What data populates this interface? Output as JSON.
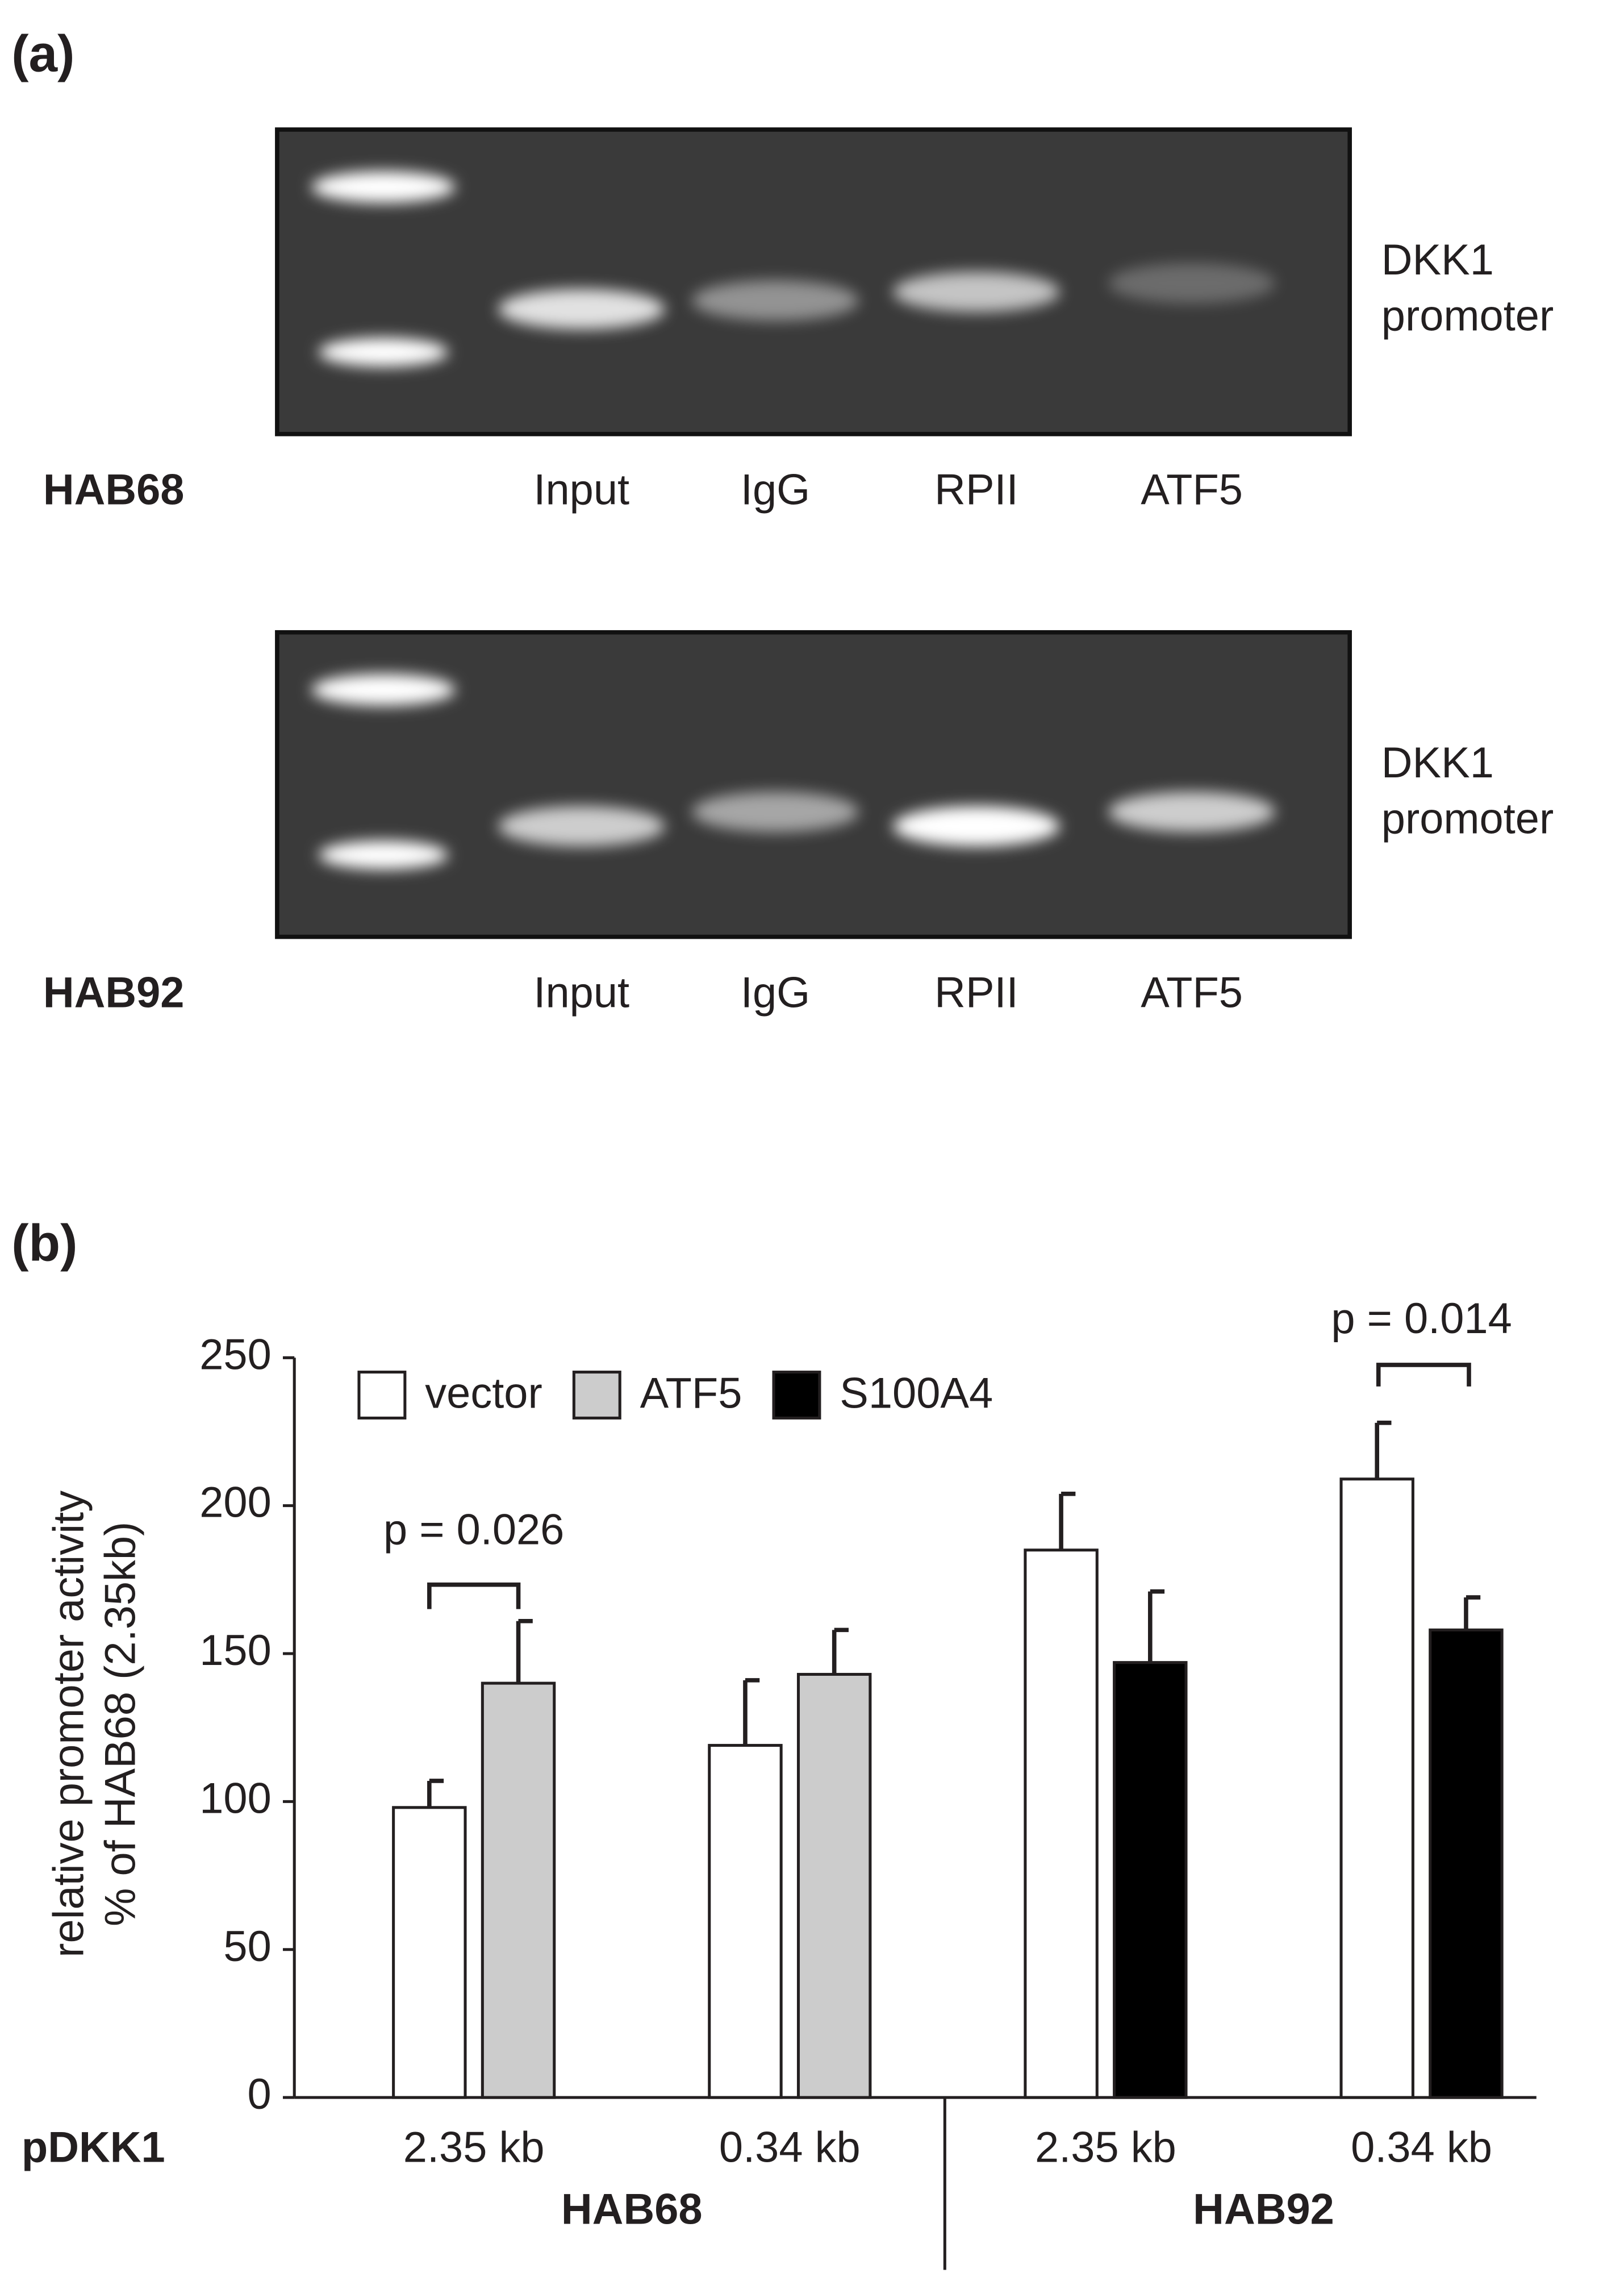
{
  "panel_a": {
    "label": "(a)",
    "gels": [
      {
        "cell_line": "HAB68",
        "lanes": [
          "Input",
          "IgG",
          "RPII",
          "ATF5"
        ],
        "target": [
          "DKK1",
          "promoter"
        ]
      },
      {
        "cell_line": "HAB92",
        "lanes": [
          "Input",
          "IgG",
          "RPII",
          "ATF5"
        ],
        "target": [
          "DKK1",
          "promoter"
        ]
      }
    ]
  },
  "panel_b": {
    "label": "(b)"
  },
  "chart_data": {
    "type": "bar",
    "y_label": [
      "relative promoter activity",
      "% of HAB68 (2.35kb)"
    ],
    "x_prefix": "pDKK1",
    "categories": [
      "2.35 kb",
      "0.34 kb",
      "2.35 kb",
      "0.34 kb"
    ],
    "groups": [
      "HAB68",
      "HAB92"
    ],
    "series": [
      {
        "name": "vector",
        "color": "#ffffff",
        "values": [
          98,
          119,
          185,
          209
        ],
        "errors": [
          9,
          22,
          19,
          19
        ]
      },
      {
        "name": "ATF5",
        "color": "#cccccc",
        "values": [
          140,
          143,
          null,
          null
        ],
        "errors": [
          21,
          15,
          null,
          null
        ]
      },
      {
        "name": "S100A4",
        "color": "#000000",
        "values": [
          null,
          null,
          147,
          158
        ],
        "errors": [
          null,
          null,
          24,
          11
        ]
      }
    ],
    "annotations": [
      "p = 0.026",
      "p = 0.014"
    ],
    "ylim": [
      0,
      250
    ],
    "yticks": [
      0,
      50,
      100,
      150,
      200,
      250
    ],
    "legend": "top-left",
    "grid": false
  }
}
